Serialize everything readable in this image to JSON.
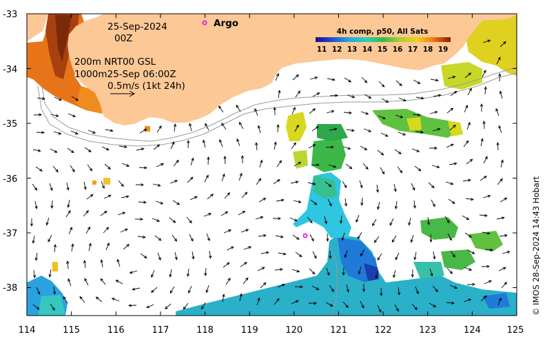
{
  "map": {
    "date_line": "25-Sep-2024",
    "time_line": "00Z",
    "contour_line1": "200m  NRT00 GSL",
    "contour_line2": "1000m25-Sep 06:00Z",
    "scale_label": "0.5m/s (1kt 24h)",
    "argo_label": "Argo",
    "colorbar_title": "4h comp, p50, All Sats",
    "colorbar_ticks": [
      "11",
      "12",
      "13",
      "14",
      "15",
      "16",
      "17",
      "18",
      "19"
    ],
    "credit": "© IMOS 28-Sep-2024 14:43 Hobart",
    "x_ticks": [
      "114",
      "115",
      "116",
      "117",
      "118",
      "119",
      "120",
      "121",
      "122",
      "123",
      "124",
      "125"
    ],
    "y_ticks": [
      "-33",
      "-34",
      "-35",
      "-36",
      "-37",
      "-38"
    ],
    "colors": {
      "land": "#fcc896",
      "ocean": "#ffffff",
      "argo_marker": "#e600e6"
    }
  }
}
